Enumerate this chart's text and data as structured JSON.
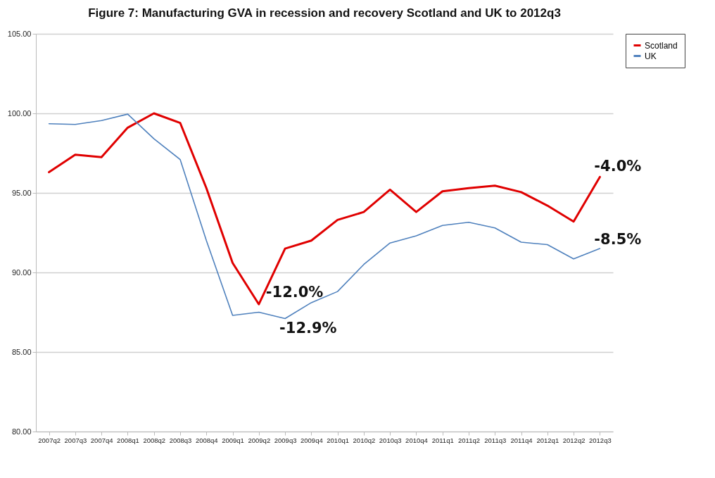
{
  "chart_data": {
    "type": "line",
    "title": "Figure 7: Manufacturing GVA in recession and recovery Scotland and UK to 2012q3",
    "categories": [
      "2007q2",
      "2007q3",
      "2007q4",
      "2008q1",
      "2008q2",
      "2008q3",
      "2008q4",
      "2009q1",
      "2009q2",
      "2009q3",
      "2009q4",
      "2010q1",
      "2010q2",
      "2010q3",
      "2010q4",
      "2011q1",
      "2011q2",
      "2011q3",
      "2011q4",
      "2012q1",
      "2012q2",
      "2012q3"
    ],
    "series": [
      {
        "name": "Scotland",
        "color": "#e00000",
        "values": [
          96.3,
          97.4,
          97.25,
          99.1,
          100.0,
          99.4,
          95.3,
          90.6,
          88.0,
          91.5,
          92.0,
          93.3,
          93.8,
          95.2,
          93.8,
          95.1,
          95.3,
          95.45,
          95.05,
          94.2,
          93.2,
          96.0
        ]
      },
      {
        "name": "UK",
        "color": "#4f81bd",
        "values": [
          99.35,
          99.3,
          99.55,
          99.95,
          98.4,
          97.1,
          92.0,
          87.3,
          87.5,
          87.1,
          88.1,
          88.8,
          90.5,
          91.85,
          92.3,
          92.95,
          93.15,
          92.8,
          91.9,
          91.75,
          90.85,
          91.5
        ]
      }
    ],
    "ylim": [
      80,
      105
    ],
    "yticks": [
      {
        "value": 80,
        "label": "80.00"
      },
      {
        "value": 85,
        "label": "85.00"
      },
      {
        "value": 90,
        "label": "90.00"
      },
      {
        "value": 95,
        "label": "95.00"
      },
      {
        "value": 100,
        "label": "100.00"
      },
      {
        "value": 105,
        "label": "105.00"
      }
    ],
    "grid": "y",
    "legend": "right",
    "annotations": [
      {
        "text": "-12.0%",
        "x": "2009q2",
        "y": 88.0
      },
      {
        "text": "-12.9%",
        "x": "2009q3",
        "y": 87.1
      },
      {
        "text": "-4.0%",
        "x": "2012q3",
        "y": 96.0
      },
      {
        "text": "-8.5%",
        "x": "2012q3",
        "y": 91.5
      }
    ]
  }
}
